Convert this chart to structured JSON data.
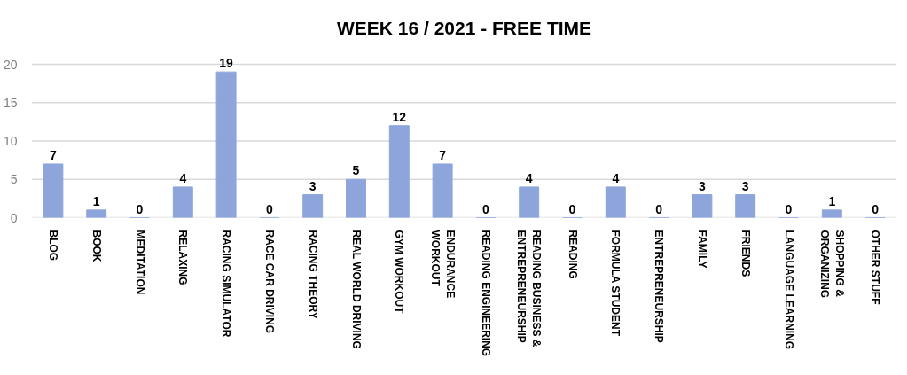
{
  "chart_data": {
    "type": "bar",
    "title": "WEEK 16 / 2021 - FREE TIME",
    "categories": [
      "BLOG",
      "BOOK",
      "MEDITATION",
      "RELAXING",
      "RACING SIMULATOR",
      "RACE CAR DRIVING",
      "RACING THEORY",
      "REAL WORLD DRIVING",
      "GYM WORKOUT",
      "ENDURANCE\nWORKOUT",
      "READING ENGINEERING",
      "READING BUSINESS &\nENTREPRENEURSHIP",
      "READING",
      "FORMULA STUDENT",
      "ENTREPRENEURSHIP",
      "FAMILY",
      "FRIENDS",
      "LANGUAGE LEARNING",
      "SHOPPING &\nORGANIZING",
      "OTHER STUFF"
    ],
    "values": [
      7,
      1,
      0,
      4,
      19,
      0,
      3,
      5,
      12,
      7,
      0,
      4,
      0,
      4,
      0,
      3,
      3,
      0,
      1,
      0
    ],
    "color": "#8ea5dc",
    "ylim": [
      0,
      20
    ],
    "yticks": [
      0,
      5,
      10,
      15,
      20
    ],
    "grid": "y",
    "data_labels": true
  }
}
